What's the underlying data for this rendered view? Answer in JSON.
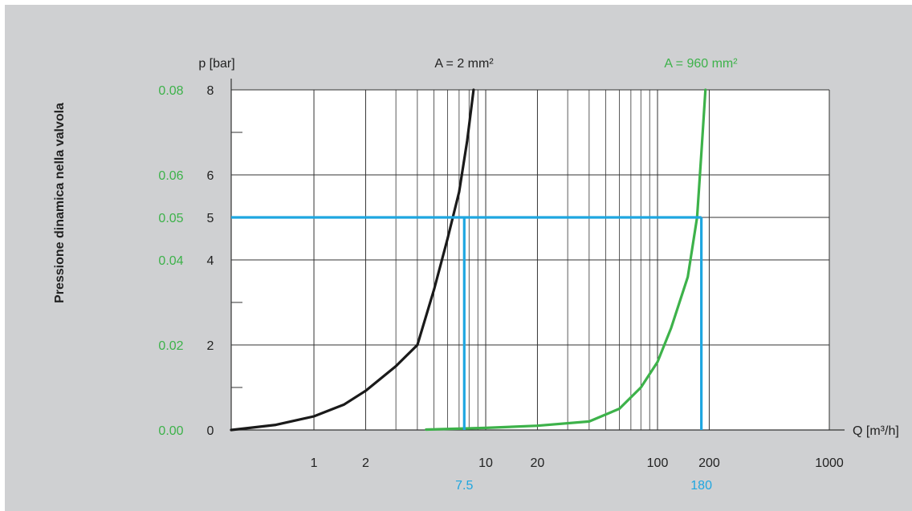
{
  "chart_data": {
    "type": "line",
    "ylabel_side": "Pressione dinamica nella valvola",
    "y_unit_label": "p [bar]",
    "x_unit_label": "Q [m³/h]",
    "x_scale": "log",
    "xlim": [
      0.33,
      1000
    ],
    "ylim": [
      0,
      8
    ],
    "ylim_secondary": [
      0,
      0.08
    ],
    "x_ticks": [
      {
        "value": 1,
        "label": "1"
      },
      {
        "value": 2,
        "label": "2"
      },
      {
        "value": 10,
        "label": "10"
      },
      {
        "value": 20,
        "label": "20"
      },
      {
        "value": 100,
        "label": "100"
      },
      {
        "value": 200,
        "label": "200"
      },
      {
        "value": 1000,
        "label": "1000"
      }
    ],
    "x_gridlines": [
      1,
      2,
      3,
      4,
      5,
      6,
      7,
      8,
      9,
      10,
      20,
      30,
      40,
      50,
      60,
      70,
      80,
      90,
      100,
      200
    ],
    "y_ticks": [
      {
        "value": 0,
        "label": "0",
        "label2": "0.00"
      },
      {
        "value": 2,
        "label": "2",
        "label2": "0.02"
      },
      {
        "value": 4,
        "label": "4",
        "label2": "0.04"
      },
      {
        "value": 5,
        "label": "5",
        "label2": "0.05"
      },
      {
        "value": 6,
        "label": "6",
        "label2": "0.06"
      },
      {
        "value": 8,
        "label": "8",
        "label2": "0.08"
      }
    ],
    "y_minor_ticks": [
      1,
      3,
      7
    ],
    "series": [
      {
        "name": "A = 2 mm²",
        "color": "#1a1a1a",
        "points": [
          [
            0.33,
            0
          ],
          [
            0.6,
            0.12
          ],
          [
            1.0,
            0.32
          ],
          [
            1.5,
            0.6
          ],
          [
            2.0,
            0.92
          ],
          [
            3.0,
            1.5
          ],
          [
            4.0,
            2.0
          ],
          [
            5.0,
            3.3
          ],
          [
            6.0,
            4.5
          ],
          [
            7.0,
            5.6
          ],
          [
            7.8,
            6.8
          ],
          [
            8.5,
            8.0
          ]
        ]
      },
      {
        "name": "A = 960 mm²",
        "color": "#3db24a",
        "points": [
          [
            4.5,
            0.01
          ],
          [
            10,
            0.05
          ],
          [
            20,
            0.1
          ],
          [
            40,
            0.2
          ],
          [
            60,
            0.5
          ],
          [
            80,
            1.0
          ],
          [
            100,
            1.6
          ],
          [
            120,
            2.4
          ],
          [
            150,
            3.6
          ],
          [
            170,
            5.0
          ],
          [
            180,
            6.5
          ],
          [
            190,
            8.0
          ]
        ]
      }
    ],
    "reference": {
      "color": "#1ea6e0",
      "y": 5,
      "x_values": [
        {
          "value": 7.5,
          "label": "7.5"
        },
        {
          "value": 180,
          "label": "180"
        }
      ]
    },
    "secondary_color": "#3db24a",
    "grid": true
  }
}
